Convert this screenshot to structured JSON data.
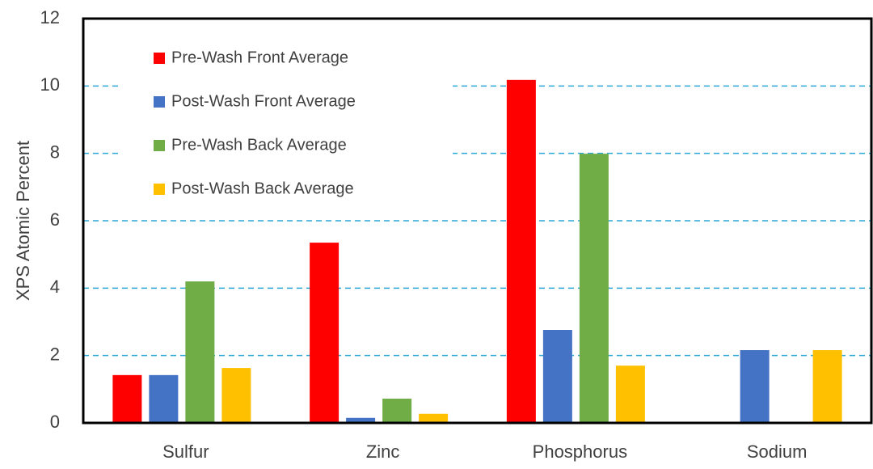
{
  "chart_data": {
    "type": "bar",
    "ylabel": "XPS Atomic Percent",
    "categories": [
      "Sulfur",
      "Zinc",
      "Phosphorus",
      "Sodium"
    ],
    "series": [
      {
        "name": "Pre-Wash Front Average",
        "color": "#ff0000",
        "values": [
          1.42,
          5.35,
          10.18,
          0
        ]
      },
      {
        "name": "Post-Wash Front Average",
        "color": "#4472c4",
        "values": [
          1.42,
          0.15,
          2.76,
          2.16
        ]
      },
      {
        "name": "Pre-Wash Back Average",
        "color": "#70ad47",
        "values": [
          4.2,
          0.72,
          7.99,
          0
        ]
      },
      {
        "name": "Post-Wash Back Average",
        "color": "#ffc000",
        "values": [
          1.63,
          0.27,
          1.7,
          2.16
        ]
      }
    ],
    "ylim": [
      0,
      12
    ],
    "yticks": [
      0,
      2,
      4,
      6,
      8,
      10,
      12
    ],
    "grid": true,
    "legend": "upper left"
  }
}
